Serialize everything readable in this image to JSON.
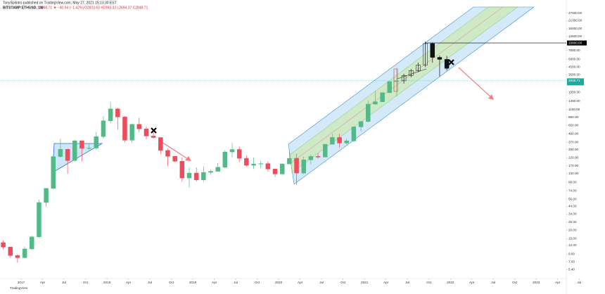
{
  "header": {
    "publisher": "TonySpilotro published on TradingView.com, May 27, 2021 15:13:30 EST",
    "symbol": "BITSTAMP:ETHUSD, 1W",
    "change": "2848.71 ▼ −40.94 (−1.42%)",
    "ohlc": "O2823.63 H2993.33 L2694.37 C2848.71"
  },
  "footer": "TradingView",
  "chart_data": {
    "type": "candlestick",
    "log_scale": true,
    "up_color": "#53b987",
    "down_color": "#eb4d5c",
    "ylim": [
      4.1,
      33000
    ],
    "yticks": [
      {
        "value": 27000,
        "label": "27000.00"
      },
      {
        "value": 21000,
        "label": "21000.00"
      },
      {
        "value": 16000,
        "label": "16000.00"
      },
      {
        "value": 12500,
        "label": "12500.00"
      },
      {
        "value": 7800,
        "label": "7800.00"
      },
      {
        "value": 5800,
        "label": "5800.00"
      },
      {
        "value": 4500,
        "label": "4500.00"
      },
      {
        "value": 3500,
        "label": "3500.00"
      },
      {
        "value": 1950,
        "label": "1950.00"
      },
      {
        "value": 1450,
        "label": "1450.00"
      },
      {
        "value": 1100,
        "label": "1100.00"
      },
      {
        "value": 850,
        "label": "850.00"
      },
      {
        "value": 650,
        "label": "650.00"
      },
      {
        "value": 490,
        "label": "490.00"
      },
      {
        "value": 370,
        "label": "370.00"
      },
      {
        "value": 290,
        "label": "290.00"
      },
      {
        "value": 220,
        "label": "220.00"
      },
      {
        "value": 170,
        "label": "170.00"
      },
      {
        "value": 130,
        "label": "130.00"
      },
      {
        "value": 98,
        "label": "98.00"
      },
      {
        "value": 74,
        "label": "74.00"
      },
      {
        "value": 56,
        "label": "56.00"
      },
      {
        "value": 44,
        "label": "44.00"
      },
      {
        "value": 34,
        "label": "34.00"
      },
      {
        "value": 26,
        "label": "26.00"
      },
      {
        "value": 20,
        "label": "20.00"
      },
      {
        "value": 15,
        "label": "15.00"
      },
      {
        "value": 12,
        "label": "12.00"
      },
      {
        "value": 9,
        "label": "9.00"
      },
      {
        "value": 7,
        "label": "7.00"
      },
      {
        "value": 5.4,
        "label": "5.40"
      }
    ],
    "xticks": [
      {
        "value": "2017-01",
        "label": "2017"
      },
      {
        "value": "2017-04",
        "label": "Apr"
      },
      {
        "value": "2017-07",
        "label": "Jul"
      },
      {
        "value": "2017-10",
        "label": "Oct"
      },
      {
        "value": "2018-01",
        "label": "2018"
      },
      {
        "value": "2018-04",
        "label": "Apr"
      },
      {
        "value": "2018-07",
        "label": "Jul"
      },
      {
        "value": "2018-10",
        "label": "Oct"
      },
      {
        "value": "2019-01",
        "label": "2019"
      },
      {
        "value": "2019-04",
        "label": "Apr"
      },
      {
        "value": "2019-07",
        "label": "Jul"
      },
      {
        "value": "2019-10",
        "label": "Oct"
      },
      {
        "value": "2020-01",
        "label": "2020"
      },
      {
        "value": "2020-04",
        "label": "Apr"
      },
      {
        "value": "2020-07",
        "label": "Jul"
      },
      {
        "value": "2020-10",
        "label": "Oct"
      },
      {
        "value": "2021-01",
        "label": "2021"
      },
      {
        "value": "2021-04",
        "label": "Apr"
      },
      {
        "value": "2021-07",
        "label": "Jul"
      },
      {
        "value": "2021-10",
        "label": "Oct"
      },
      {
        "value": "2022-01",
        "label": "2022"
      },
      {
        "value": "2022-04",
        "label": "Apr"
      },
      {
        "value": "2022-07",
        "label": "Jul"
      },
      {
        "value": "2022-10",
        "label": "Oct"
      },
      {
        "value": "2023-01",
        "label": "2023"
      },
      {
        "value": "2023-04",
        "label": "Apr"
      },
      {
        "value": "2023-07",
        "label": "Jul"
      }
    ],
    "x": [
      "2016-10",
      "2016-11",
      "2016-12",
      "2017-01",
      "2017-02",
      "2017-03",
      "2017-04",
      "2017-05",
      "2017-06",
      "2017-07",
      "2017-08",
      "2017-09",
      "2017-10",
      "2017-11",
      "2017-12",
      "2018-01",
      "2018-02",
      "2018-03",
      "2018-04",
      "2018-05",
      "2018-06",
      "2018-07",
      "2018-08",
      "2018-09",
      "2018-10",
      "2018-11",
      "2018-12",
      "2019-01",
      "2019-02",
      "2019-03",
      "2019-04",
      "2019-05",
      "2019-06",
      "2019-07",
      "2019-08",
      "2019-09",
      "2019-10",
      "2019-11",
      "2019-12",
      "2020-01",
      "2020-02",
      "2020-03",
      "2020-04",
      "2020-05",
      "2020-06",
      "2020-07",
      "2020-08",
      "2020-09",
      "2020-10",
      "2020-11",
      "2020-12",
      "2021-01",
      "2021-02",
      "2021-03",
      "2021-04",
      "2021-05"
    ],
    "open": [
      13.2,
      11.4,
      8.6,
      8.0,
      10.7,
      16.0,
      50,
      80,
      230,
      293,
      201,
      388,
      302,
      305,
      447,
      756,
      1120,
      856,
      396,
      670,
      577,
      455,
      433,
      282,
      232,
      197,
      113,
      133,
      106,
      136,
      141,
      161,
      268,
      291,
      217,
      172,
      180,
      182,
      152,
      129,
      180,
      217,
      133,
      206,
      231,
      226,
      346,
      434,
      360,
      387,
      616,
      737,
      1312,
      1420,
      1918,
      2773
    ],
    "high": [
      14.2,
      11.5,
      9.0,
      11.5,
      16.5,
      55,
      81,
      232,
      420,
      300,
      400,
      395,
      350,
      520,
      880,
      1420,
      1160,
      880,
      690,
      835,
      625,
      515,
      435,
      300,
      235,
      224,
      160,
      160,
      165,
      148,
      185,
      285,
      362,
      320,
      238,
      223,
      198,
      195,
      155,
      185,
      288,
      253,
      228,
      245,
      256,
      350,
      490,
      488,
      420,
      620,
      750,
      1470,
      2040,
      1940,
      2800,
      4380
    ],
    "low": [
      10.5,
      8.0,
      6.8,
      7.9,
      10.4,
      15.5,
      43,
      77,
      220,
      130,
      195,
      195,
      285,
      290,
      420,
      700,
      560,
      370,
      365,
      520,
      410,
      420,
      250,
      167,
      190,
      100,
      82,
      100,
      100,
      125,
      140,
      155,
      225,
      190,
      165,
      152,
      155,
      140,
      117,
      125,
      180,
      90,
      128,
      177,
      215,
      224,
      344,
      308,
      340,
      372,
      530,
      714,
      1300,
      1460,
      1880,
      1700
    ],
    "close": [
      11.4,
      8.6,
      8.0,
      10.7,
      16.0,
      50,
      80,
      230,
      293,
      201,
      388,
      302,
      305,
      447,
      756,
      1120,
      856,
      396,
      670,
      577,
      455,
      433,
      282,
      232,
      197,
      113,
      133,
      106,
      136,
      141,
      161,
      268,
      291,
      217,
      172,
      180,
      182,
      152,
      129,
      180,
      217,
      133,
      206,
      231,
      226,
      346,
      434,
      360,
      387,
      616,
      737,
      1312,
      1420,
      1918,
      2773,
      2848.71
    ],
    "projection": {
      "color": "#111111",
      "x": [
        "2021-06",
        "2021-07",
        "2021-08",
        "2021-09",
        "2021-10",
        "2021-11",
        "2021-12"
      ],
      "open": [
        2848,
        3400,
        4000,
        4800,
        9800,
        6200,
        5800
      ],
      "high": [
        3600,
        4200,
        5200,
        10500,
        10200,
        6600,
        6500
      ],
      "low": [
        2600,
        3200,
        3800,
        4500,
        5200,
        3300,
        4000
      ],
      "close": [
        3400,
        4000,
        4800,
        9800,
        6200,
        5800,
        4300
      ]
    },
    "last_price": 2848.71,
    "hline": {
      "value": 10000,
      "label": "10000.00"
    }
  }
}
